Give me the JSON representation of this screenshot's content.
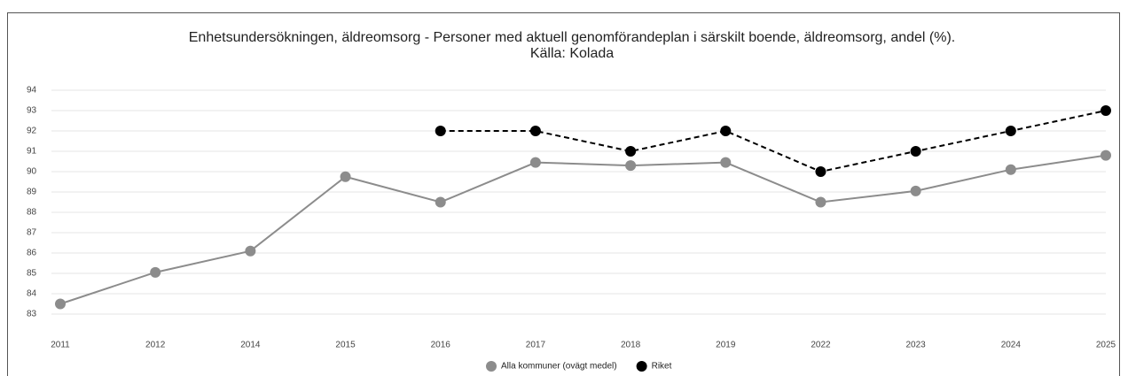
{
  "chart_data": {
    "type": "line",
    "title": "Enhetsundersökningen, äldreomsorg - Personer med aktuell genomförandeplan i särskilt boende, äldreomsorg, andel (%).",
    "subtitle": "Källa: Kolada",
    "categories": [
      "2011",
      "2012",
      "2014",
      "2015",
      "2016",
      "2017",
      "2018",
      "2019",
      "2022",
      "2023",
      "2024",
      "2025"
    ],
    "series": [
      {
        "name": "Alla kommuner (ovägt medel)",
        "color": "#8c8c8c",
        "line_style": "solid",
        "values": [
          83.5,
          85.05,
          86.1,
          89.75,
          88.5,
          90.45,
          90.3,
          90.45,
          88.5,
          89.05,
          90.1,
          90.8
        ]
      },
      {
        "name": "Riket",
        "color": "#000000",
        "line_style": "dashed",
        "values": [
          null,
          null,
          null,
          null,
          92,
          92,
          91,
          92,
          90,
          91,
          92,
          93
        ]
      }
    ],
    "ylim": [
      83,
      94
    ],
    "yticks": [
      83,
      84,
      85,
      86,
      87,
      88,
      89,
      90,
      91,
      92,
      93,
      94
    ],
    "grid": true,
    "legend": "bottom"
  }
}
